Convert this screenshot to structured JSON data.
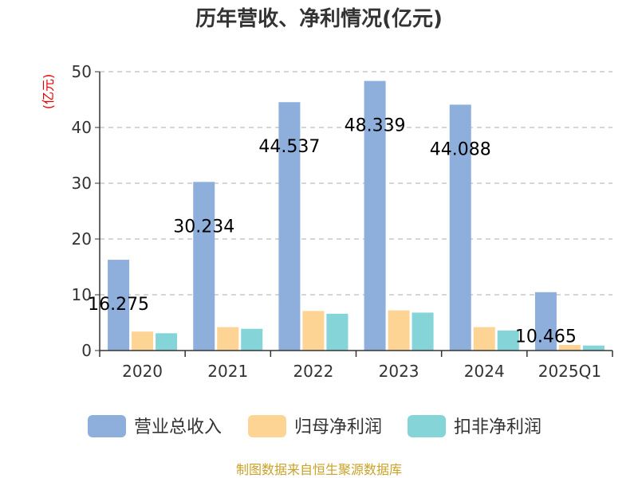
{
  "chart_data": {
    "type": "bar",
    "title": "历年营收、净利情况(亿元)",
    "ylabel": "(亿元)",
    "ylim": [
      0,
      50
    ],
    "yticks": [
      0,
      10,
      20,
      30,
      40,
      50
    ],
    "grid": true,
    "legend_position": "bottom",
    "categories": [
      "2020",
      "2021",
      "2022",
      "2023",
      "2024",
      "2025Q1"
    ],
    "series": [
      {
        "name": "营业总收入",
        "color": "#8eaedb",
        "values": [
          16.275,
          30.234,
          44.537,
          48.339,
          44.088,
          10.465
        ],
        "labels": [
          "16.275",
          "30.234",
          "44.537",
          "48.339",
          "44.088",
          "10.465"
        ]
      },
      {
        "name": "归母净利润",
        "color": "#fdd494",
        "values": [
          3.4,
          4.2,
          7.1,
          7.2,
          4.2,
          1.0
        ]
      },
      {
        "name": "扣非净利润",
        "color": "#84d4d8",
        "values": [
          3.1,
          3.9,
          6.6,
          6.8,
          3.6,
          0.9
        ]
      }
    ],
    "source": "制图数据来自恒生聚源数据库"
  }
}
